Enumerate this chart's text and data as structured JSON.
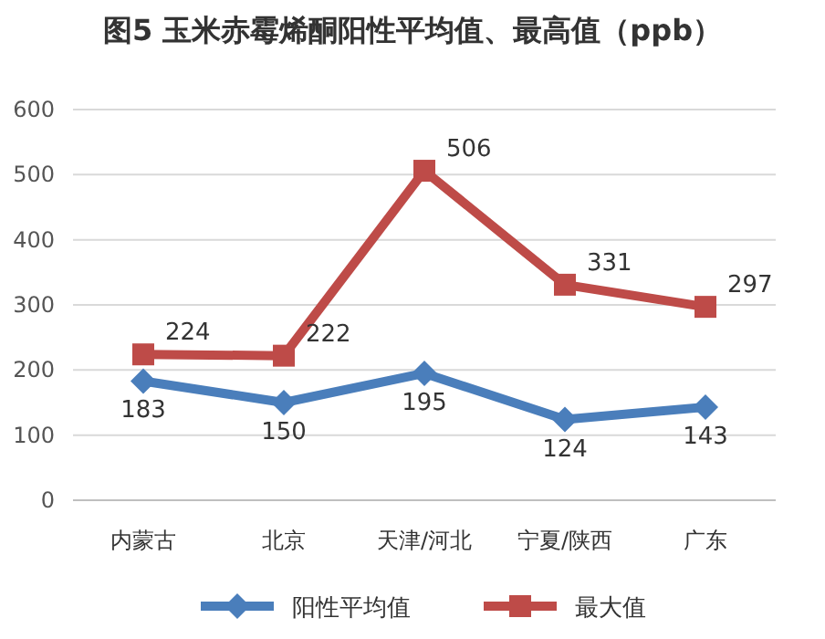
{
  "chart_data": {
    "type": "line",
    "title": "图5  玉米赤霉烯酮阳性平均值、最高值（ppb）",
    "categories": [
      "内蒙古",
      "北京",
      "天津/河北",
      "宁夏/陕西",
      "广东"
    ],
    "series": [
      {
        "name": "阳性平均值",
        "color": "#4a7ebb",
        "marker": "diamond",
        "values": [
          183,
          150,
          195,
          124,
          143
        ]
      },
      {
        "name": "最大值",
        "color": "#be4b48",
        "marker": "square",
        "values": [
          224,
          222,
          506,
          331,
          297
        ]
      }
    ],
    "ylim": [
      0,
      600
    ],
    "yticks": [
      0,
      100,
      200,
      300,
      400,
      500,
      600
    ],
    "grid": "y",
    "legend": "bottom",
    "data_labels": true,
    "line_style": "solid"
  }
}
